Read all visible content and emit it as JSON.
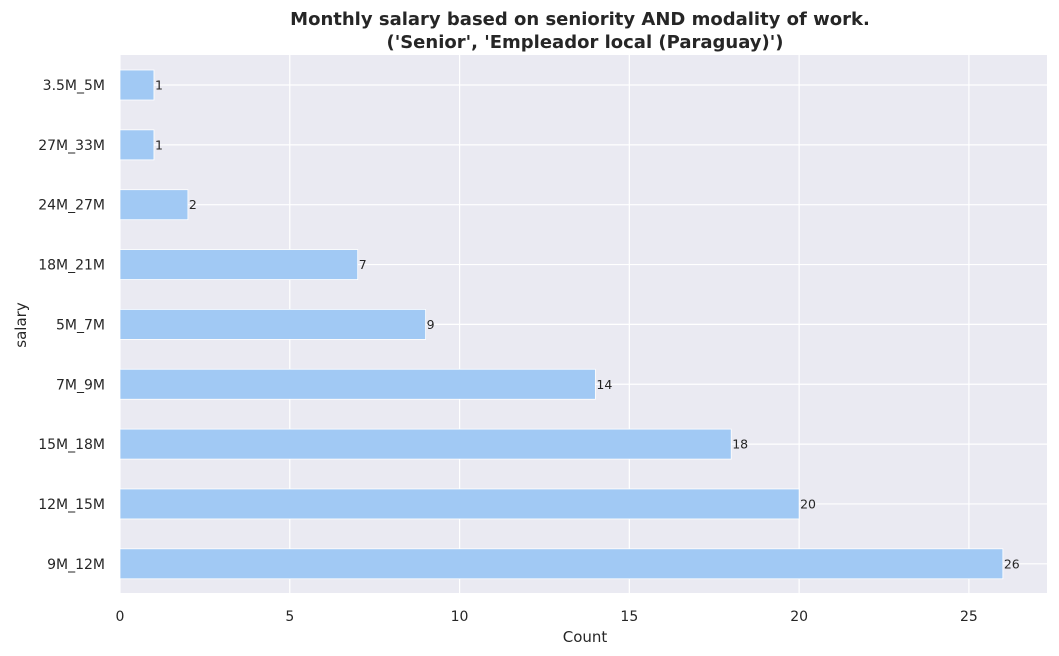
{
  "chart_data": {
    "type": "bar",
    "orientation": "horizontal",
    "title_line1": "Monthly salary based on seniority AND modality of work.",
    "title_line2": "('Senior', 'Empleador local (Paraguay)')",
    "xlabel": "Count",
    "ylabel": "salary",
    "categories": [
      "3.5M_5M",
      "27M_33M",
      "24M_27M",
      "18M_21M",
      "5M_7M",
      "7M_9M",
      "15M_18M",
      "12M_15M",
      "9M_12M"
    ],
    "values": [
      1,
      1,
      2,
      7,
      9,
      14,
      18,
      20,
      26
    ],
    "x_ticks": [
      0,
      5,
      10,
      15,
      20,
      25
    ],
    "xlim": [
      0,
      27.3
    ],
    "grid": true,
    "colors": {
      "bar": "#a1c9f4",
      "background": "#eaeaf2",
      "grid": "#ffffff",
      "text": "#262626"
    }
  }
}
